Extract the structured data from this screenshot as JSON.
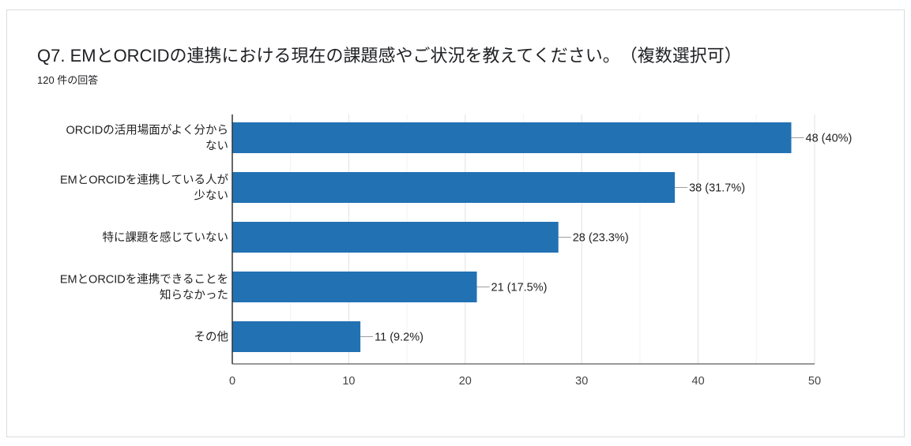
{
  "question": {
    "title": "Q7. EMとORCIDの連携における現在の課題感やご状況を教えてください。　（複数選択可）",
    "response_count": "120 件の回答"
  },
  "colors": {
    "bar": "#2271b3",
    "grid": "#e8e8e8",
    "axis": "#333333"
  },
  "chart_data": {
    "type": "bar",
    "orientation": "horizontal",
    "categories": [
      [
        "ORCIDの活用場面がよく分から",
        "ない"
      ],
      [
        "EMとORCIDを連携している人が",
        "少ない"
      ],
      [
        "特に課題を感じていない"
      ],
      [
        "EMとORCIDを連携できることを",
        "知らなかった"
      ],
      [
        "その他"
      ]
    ],
    "values": [
      48,
      38,
      28,
      21,
      11
    ],
    "data_labels": [
      "48 (40%)",
      "38 (31.7%)",
      "28 (23.3%)",
      "21 (17.5%)",
      "11 (9.2%)"
    ],
    "xlim": [
      0,
      50
    ],
    "xticks": [
      0,
      10,
      20,
      30,
      40,
      50
    ],
    "grid": true
  }
}
